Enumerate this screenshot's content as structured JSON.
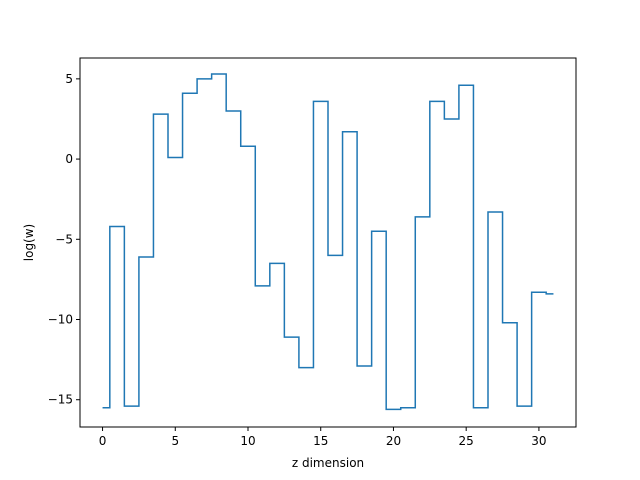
{
  "chart_data": {
    "type": "line",
    "step": "mid",
    "xlabel": "z dimension",
    "ylabel": "log(w)",
    "xlim": [
      -1.55,
      32.55
    ],
    "ylim": [
      -16.7,
      6.3
    ],
    "xticks": [
      0,
      5,
      10,
      15,
      20,
      25,
      30
    ],
    "yticks": [
      5,
      0,
      -5,
      -10,
      -15
    ],
    "ytick_labels": [
      "5",
      "0",
      "−5",
      "−10",
      "−15"
    ],
    "grid": false,
    "series": [
      {
        "color": "#1f77b4",
        "x": [
          0,
          1,
          2,
          3,
          4,
          5,
          6,
          7,
          8,
          9,
          10,
          11,
          12,
          13,
          14,
          15,
          16,
          17,
          18,
          19,
          20,
          21,
          22,
          23,
          24,
          25,
          26,
          27,
          28,
          29,
          30,
          31
        ],
        "values": [
          -15.5,
          -4.2,
          -15.4,
          -6.1,
          2.8,
          0.1,
          4.1,
          5.0,
          5.3,
          3.0,
          0.8,
          -7.9,
          -6.5,
          -11.1,
          -13.0,
          3.6,
          -6.0,
          1.7,
          -12.9,
          -4.5,
          -15.6,
          -15.5,
          -3.6,
          3.6,
          2.5,
          4.6,
          -15.5,
          -3.3,
          -10.2,
          -15.4,
          -8.3,
          -8.4
        ]
      }
    ]
  }
}
